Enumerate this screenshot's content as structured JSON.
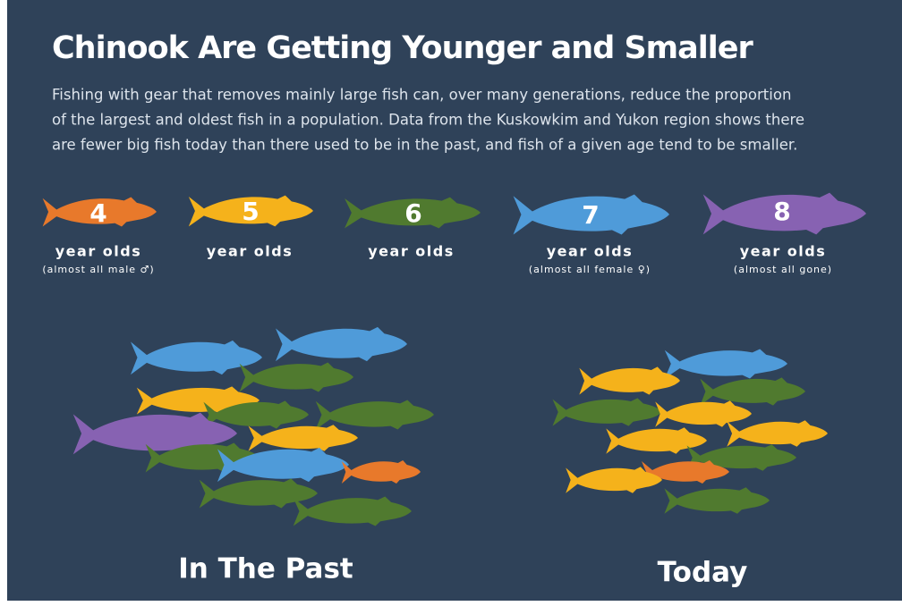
{
  "header": {
    "title": "Chinook Are Getting Younger and Smaller",
    "description": [
      "Fishing with gear that removes mainly large fish can, over many generations, reduce the proportion",
      "of the largest and oldest fish in a population. Data from the Kuskowkim and Yukon region shows there",
      "are fewer big fish today than there used to be in the past, and fish of a given age tend to be smaller."
    ]
  },
  "legend": [
    {
      "age": "4",
      "label": "year olds",
      "note": "(almost all male ♂)",
      "color": "#e8792b"
    },
    {
      "age": "5",
      "label": "year olds",
      "color": "#f5b21b"
    },
    {
      "age": "6",
      "label": "year olds",
      "color": "#507a2f"
    },
    {
      "age": "7",
      "label": "year olds",
      "note": "(almost all female ♀)",
      "color": "#4f9bd9"
    },
    {
      "age": "8",
      "label": "year olds",
      "note": "(almost all gone)",
      "color": "#8762b2"
    }
  ],
  "groups": [
    {
      "label": "In The Past"
    },
    {
      "label": "Today"
    }
  ]
}
